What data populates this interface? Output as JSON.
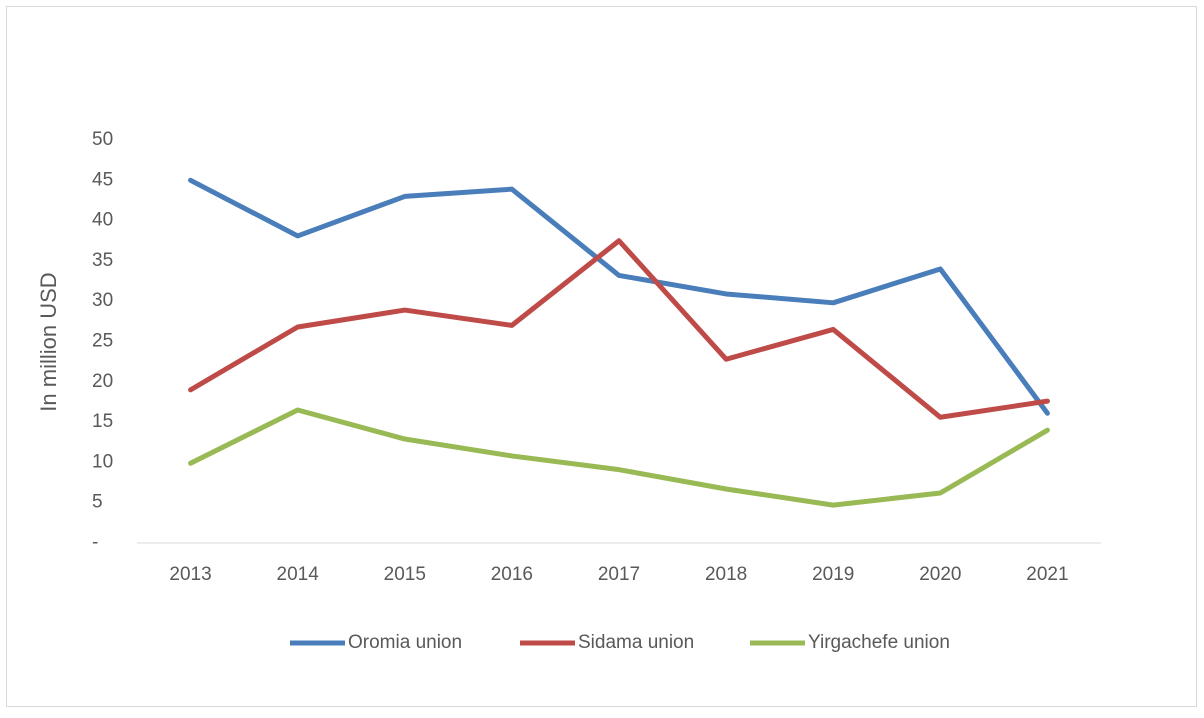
{
  "chart_data": {
    "type": "line",
    "ylabel": "In million USD",
    "categories": [
      "2013",
      "2014",
      "2015",
      "2016",
      "2017",
      "2018",
      "2019",
      "2020",
      "2021"
    ],
    "series": [
      {
        "name": "Oromia union",
        "color": "#4a7ebb",
        "values": [
          45,
          38.1,
          43,
          43.9,
          33.2,
          30.9,
          29.8,
          34,
          16.1
        ]
      },
      {
        "name": "Sidama union",
        "color": "#be4b48",
        "values": [
          19,
          26.8,
          28.9,
          27,
          37.5,
          22.8,
          26.5,
          15.6,
          17.6
        ]
      },
      {
        "name": "Yirgachefe union",
        "color": "#98b954",
        "values": [
          9.9,
          16.5,
          12.9,
          10.8,
          9.1,
          6.7,
          4.7,
          6.2,
          14
        ]
      }
    ],
    "ylim": [
      0,
      50
    ],
    "yticks": [
      {
        "value": 0,
        "label": "-"
      },
      5,
      10,
      15,
      20,
      25,
      30,
      35,
      40,
      45,
      50
    ],
    "grid": false,
    "legend": "bottom"
  }
}
